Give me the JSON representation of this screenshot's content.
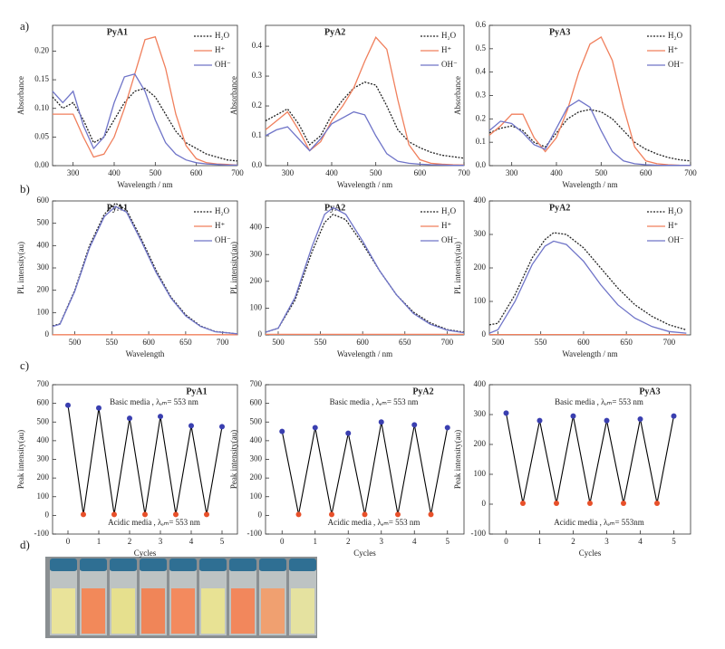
{
  "panel_labels": [
    "a)",
    "b)",
    "c)",
    "d)"
  ],
  "chart_data": [
    {
      "type": "line",
      "title": "PyA1",
      "xlabel": "Wavelength / nm",
      "ylabel": "Absorbance",
      "legend": "upper right",
      "x": [
        250,
        275,
        300,
        325,
        350,
        375,
        400,
        425,
        450,
        475,
        500,
        525,
        550,
        575,
        600,
        625,
        650,
        675,
        700
      ],
      "xlim": [
        250,
        700
      ],
      "xticks": [
        300,
        400,
        500,
        600,
        700
      ],
      "ylim": [
        0,
        0.245
      ],
      "yticks": [
        {
          "value": 0,
          "label": "0.00"
        },
        0.05,
        {
          "value": 0.1,
          "label": "0.10"
        },
        0.15,
        {
          "value": 0.2,
          "label": "0.20"
        }
      ],
      "series": [
        {
          "name": "H₂O",
          "color": "#222222",
          "dashed": true,
          "values": [
            0.12,
            0.1,
            0.11,
            0.08,
            0.04,
            0.05,
            0.08,
            0.11,
            0.13,
            0.135,
            0.12,
            0.09,
            0.06,
            0.04,
            0.03,
            0.02,
            0.015,
            0.01,
            0.008
          ]
        },
        {
          "name": "H⁺",
          "color": "#f07f5c",
          "values": [
            0.09,
            0.09,
            0.09,
            0.05,
            0.015,
            0.02,
            0.05,
            0.1,
            0.16,
            0.22,
            0.225,
            0.17,
            0.09,
            0.035,
            0.012,
            0.005,
            0.003,
            0.002,
            0.001
          ]
        },
        {
          "name": "OH⁻",
          "color": "#6f74c8",
          "values": [
            0.13,
            0.11,
            0.13,
            0.07,
            0.03,
            0.05,
            0.11,
            0.155,
            0.16,
            0.13,
            0.08,
            0.04,
            0.02,
            0.01,
            0.005,
            0.003,
            0.002,
            0.001,
            0.001
          ]
        }
      ]
    },
    {
      "type": "line",
      "title": "PyA2",
      "xlabel": "Wavelength / nm",
      "ylabel": "Absorbance",
      "legend": "upper right",
      "x": [
        250,
        275,
        300,
        325,
        350,
        375,
        400,
        425,
        450,
        475,
        500,
        525,
        550,
        575,
        600,
        625,
        650,
        675,
        700
      ],
      "xlim": [
        250,
        700
      ],
      "xticks": [
        300,
        400,
        500,
        600,
        700
      ],
      "ylim": [
        0,
        0.47
      ],
      "yticks": [
        {
          "value": 0,
          "label": "0.0"
        },
        0.1,
        0.2,
        0.3,
        0.4
      ],
      "series": [
        {
          "name": "H₂O",
          "color": "#222222",
          "dashed": true,
          "values": [
            0.15,
            0.17,
            0.19,
            0.14,
            0.07,
            0.1,
            0.17,
            0.22,
            0.26,
            0.28,
            0.27,
            0.2,
            0.12,
            0.08,
            0.06,
            0.045,
            0.035,
            0.03,
            0.025
          ]
        },
        {
          "name": "H⁺",
          "color": "#f07f5c",
          "values": [
            0.12,
            0.15,
            0.18,
            0.12,
            0.05,
            0.08,
            0.15,
            0.2,
            0.26,
            0.35,
            0.43,
            0.39,
            0.22,
            0.07,
            0.02,
            0.008,
            0.005,
            0.003,
            0.002
          ]
        },
        {
          "name": "OH⁻",
          "color": "#6f74c8",
          "values": [
            0.1,
            0.12,
            0.13,
            0.09,
            0.05,
            0.09,
            0.14,
            0.16,
            0.18,
            0.17,
            0.1,
            0.04,
            0.015,
            0.008,
            0.005,
            0.003,
            0.002,
            0.001,
            0.001
          ]
        }
      ]
    },
    {
      "type": "line",
      "title": "PyA3",
      "xlabel": "Wavelength / nm",
      "ylabel": "Absorbance",
      "legend": "upper right",
      "x": [
        250,
        275,
        300,
        325,
        350,
        375,
        400,
        425,
        450,
        475,
        500,
        525,
        550,
        575,
        600,
        625,
        650,
        675,
        700
      ],
      "xlim": [
        250,
        700
      ],
      "xticks": [
        300,
        400,
        500,
        600,
        700
      ],
      "ylim": [
        0,
        0.6
      ],
      "yticks": [
        {
          "value": 0,
          "label": "0.0"
        },
        0.1,
        0.2,
        0.3,
        0.4,
        0.5,
        0.6
      ],
      "series": [
        {
          "name": "H₂O",
          "color": "#222222",
          "dashed": true,
          "values": [
            0.14,
            0.16,
            0.17,
            0.15,
            0.1,
            0.08,
            0.14,
            0.2,
            0.23,
            0.24,
            0.23,
            0.2,
            0.15,
            0.1,
            0.07,
            0.05,
            0.035,
            0.025,
            0.02
          ]
        },
        {
          "name": "H⁺",
          "color": "#f07f5c",
          "values": [
            0.13,
            0.17,
            0.22,
            0.22,
            0.12,
            0.06,
            0.12,
            0.24,
            0.4,
            0.52,
            0.55,
            0.45,
            0.25,
            0.08,
            0.02,
            0.008,
            0.004,
            0.002,
            0.001
          ]
        },
        {
          "name": "OH⁻",
          "color": "#6f74c8",
          "values": [
            0.15,
            0.19,
            0.18,
            0.14,
            0.09,
            0.07,
            0.16,
            0.25,
            0.28,
            0.25,
            0.15,
            0.06,
            0.02,
            0.008,
            0.004,
            0.002,
            0.001,
            0.001,
            0.001
          ]
        }
      ]
    },
    {
      "type": "line",
      "title": "PyA1",
      "xlabel": "Wavelength",
      "ylabel": "PL intensity(au)",
      "legend": "upper right",
      "x": [
        470,
        480,
        500,
        520,
        540,
        555,
        570,
        590,
        610,
        630,
        650,
        670,
        690,
        720
      ],
      "xlim": [
        470,
        720
      ],
      "xticks": [
        500,
        550,
        600,
        650,
        700
      ],
      "ylim": [
        0,
        600
      ],
      "yticks": [
        0,
        100,
        200,
        300,
        400,
        500,
        600
      ],
      "series": [
        {
          "name": "H₂O",
          "color": "#222222",
          "dashed": true,
          "values": [
            40,
            50,
            200,
            400,
            540,
            590,
            560,
            430,
            290,
            170,
            90,
            40,
            15,
            5
          ]
        },
        {
          "name": "H⁺",
          "color": "#f07f5c",
          "values": [
            1,
            1,
            1,
            1,
            1,
            1,
            1,
            1,
            1,
            1,
            1,
            1,
            1,
            1
          ]
        },
        {
          "name": "OH⁻",
          "color": "#6f74c8",
          "values": [
            38,
            48,
            195,
            390,
            530,
            575,
            550,
            420,
            280,
            165,
            85,
            38,
            14,
            5
          ]
        }
      ]
    },
    {
      "type": "line",
      "title": "PyA2",
      "xlabel": "Wavelength / nm",
      "ylabel": "PL intensity(au)",
      "legend": "upper right",
      "x": [
        485,
        500,
        520,
        540,
        555,
        565,
        580,
        600,
        620,
        640,
        660,
        680,
        700,
        720
      ],
      "xlim": [
        485,
        720
      ],
      "xticks": [
        500,
        550,
        600,
        650,
        700
      ],
      "ylim": [
        0,
        500
      ],
      "yticks": [
        0,
        100,
        200,
        300,
        400
      ],
      "series": [
        {
          "name": "H₂O",
          "color": "#222222",
          "dashed": true,
          "values": [
            10,
            25,
            130,
            310,
            420,
            450,
            430,
            340,
            240,
            150,
            85,
            45,
            20,
            10
          ]
        },
        {
          "name": "H⁺",
          "color": "#f07f5c",
          "values": [
            2,
            2,
            2,
            2,
            2,
            2,
            2,
            2,
            2,
            2,
            2,
            2,
            2,
            2
          ]
        },
        {
          "name": "OH⁻",
          "color": "#6f74c8",
          "values": [
            10,
            25,
            140,
            330,
            450,
            475,
            450,
            350,
            240,
            150,
            80,
            40,
            18,
            8
          ]
        }
      ]
    },
    {
      "type": "line",
      "title": "PyA2",
      "xlabel": "Wavelength / nm",
      "ylabel": "PL intensity(au)",
      "legend": "upper right",
      "x": [
        490,
        500,
        520,
        540,
        555,
        565,
        580,
        600,
        620,
        640,
        660,
        680,
        700,
        720
      ],
      "xlim": [
        490,
        725
      ],
      "xticks": [
        500,
        550,
        600,
        650,
        700
      ],
      "ylim": [
        0,
        400
      ],
      "yticks": [
        0,
        100,
        200,
        300,
        400
      ],
      "series": [
        {
          "name": "H₂O",
          "color": "#222222",
          "dashed": true,
          "values": [
            30,
            35,
            120,
            230,
            285,
            305,
            300,
            260,
            200,
            140,
            90,
            55,
            30,
            15
          ]
        },
        {
          "name": "H⁺",
          "color": "#f07f5c",
          "values": [
            1,
            1,
            1,
            1,
            1,
            1,
            1,
            1,
            1,
            1,
            1,
            1,
            1,
            1
          ]
        },
        {
          "name": "OH⁻",
          "color": "#6f74c8",
          "values": [
            5,
            15,
            100,
            210,
            265,
            280,
            270,
            220,
            150,
            90,
            50,
            25,
            10,
            5
          ]
        }
      ]
    },
    {
      "type": "scatter",
      "title": "PyA1",
      "xlabel": "Cycles",
      "ylabel": "Peak intensity(au)",
      "line_color": "#000000",
      "annotations": [
        "Basic media , λₑₘ= 553 nm",
        "Acidic media , λₑₘ= 553 nm"
      ],
      "xlim": [
        -0.5,
        5.5
      ],
      "xticks": [
        0,
        1,
        2,
        3,
        4,
        5
      ],
      "ylim": [
        -100,
        700
      ],
      "yticks": [
        -100,
        0,
        100,
        200,
        300,
        400,
        500,
        600,
        700
      ],
      "series": [
        {
          "color": "#3a3fb0",
          "x": [
            0,
            1,
            2,
            3,
            4,
            5
          ],
          "values": [
            590,
            575,
            520,
            530,
            480,
            475
          ]
        },
        {
          "color": "#e8502a",
          "x": [
            0.5,
            1.5,
            2.5,
            3.5,
            4.5
          ],
          "values": [
            5,
            5,
            5,
            5,
            5
          ]
        }
      ]
    },
    {
      "type": "scatter",
      "title": "PyA2",
      "xlabel": "Cycles",
      "ylabel": "Peak intensity(au)",
      "line_color": "#000000",
      "annotations": [
        "Basic media , λₑₘ= 553 nm",
        "Acidic media , λₑₘ= 553 nm"
      ],
      "xlim": [
        -0.5,
        5.5
      ],
      "xticks": [
        0,
        1,
        2,
        3,
        4,
        5
      ],
      "ylim": [
        -100,
        700
      ],
      "yticks": [
        -100,
        0,
        100,
        200,
        300,
        400,
        500,
        600,
        700
      ],
      "series": [
        {
          "color": "#3a3fb0",
          "x": [
            0,
            1,
            2,
            3,
            4,
            5
          ],
          "values": [
            450,
            470,
            440,
            500,
            485,
            470
          ]
        },
        {
          "color": "#e8502a",
          "x": [
            0.5,
            1.5,
            2.5,
            3.5,
            4.5
          ],
          "values": [
            5,
            5,
            5,
            5,
            5
          ]
        }
      ]
    },
    {
      "type": "scatter",
      "title": "PyA3",
      "xlabel": "Cycles",
      "ylabel": "Peak intensity(au)",
      "line_color": "#000000",
      "annotations": [
        "Basic media , λₑₘ= 553 nm",
        "Acidic media , λₑₘ= 553nm"
      ],
      "xlim": [
        -0.5,
        5.5
      ],
      "xticks": [
        0,
        1,
        2,
        3,
        4,
        5
      ],
      "ylim": [
        -100,
        400
      ],
      "yticks": [
        -100,
        0,
        100,
        200,
        300,
        400
      ],
      "series": [
        {
          "color": "#3a3fb0",
          "x": [
            0,
            1,
            2,
            3,
            4,
            5
          ],
          "values": [
            305,
            280,
            295,
            280,
            285,
            295
          ]
        },
        {
          "color": "#e8502a",
          "x": [
            0.5,
            1.5,
            2.5,
            3.5,
            4.5
          ],
          "values": [
            3,
            3,
            3,
            3,
            3
          ]
        }
      ]
    }
  ]
}
